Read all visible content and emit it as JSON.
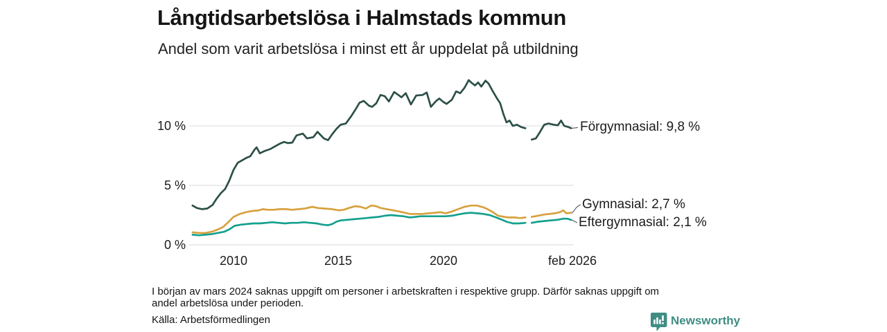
{
  "header": {
    "title": "Långtidsarbetslösa i Halmstads kommun",
    "subtitle": "Andel som varit arbetslösa i minst ett år uppdelat på utbildning"
  },
  "chart_data": {
    "type": "line",
    "title": "Långtidsarbetslösa i Halmstads kommun",
    "subtitle": "Andel som varit arbetslösa i minst ett år uppdelat på utbildning",
    "x_axis": {
      "range_years": [
        2008.05,
        2026.08
      ],
      "ticks": [
        {
          "label": "2010",
          "t": 2010
        },
        {
          "label": "2015",
          "t": 2015
        },
        {
          "label": "2020",
          "t": 2020
        },
        {
          "label": "feb 2026",
          "t": 2026.08
        }
      ]
    },
    "y_axis": {
      "unit": "%",
      "range": [
        0,
        14
      ],
      "ticks": [
        {
          "label": "0 %",
          "value": 0
        },
        {
          "label": "5 %",
          "value": 5
        },
        {
          "label": "10 %",
          "value": 10
        }
      ],
      "grid": true
    },
    "data_gap_note": "data missing around mars 2024 (visible break in all lines)",
    "series": [
      {
        "name": "Förgymnasial",
        "label": "Förgymnasial: 9,8 %",
        "end_value": 9.8,
        "color": "#2c4f48",
        "segments": [
          [
            [
              2008.05,
              3.3
            ],
            [
              2008.25,
              3.1
            ],
            [
              2008.5,
              3.0
            ],
            [
              2008.75,
              3.05
            ],
            [
              2009.0,
              3.35
            ],
            [
              2009.2,
              3.9
            ],
            [
              2009.4,
              4.35
            ],
            [
              2009.6,
              4.7
            ],
            [
              2009.8,
              5.4
            ],
            [
              2010.0,
              6.3
            ],
            [
              2010.2,
              6.9
            ],
            [
              2010.4,
              7.1
            ],
            [
              2010.6,
              7.3
            ],
            [
              2010.8,
              7.45
            ],
            [
              2011.0,
              8.0
            ],
            [
              2011.1,
              8.2
            ],
            [
              2011.25,
              7.7
            ],
            [
              2011.5,
              7.9
            ],
            [
              2011.75,
              8.05
            ],
            [
              2012.0,
              8.3
            ],
            [
              2012.2,
              8.5
            ],
            [
              2012.4,
              8.65
            ],
            [
              2012.6,
              8.55
            ],
            [
              2012.8,
              8.6
            ],
            [
              2013.0,
              9.2
            ],
            [
              2013.3,
              9.35
            ],
            [
              2013.5,
              8.95
            ],
            [
              2013.8,
              9.05
            ],
            [
              2014.0,
              9.5
            ],
            [
              2014.3,
              8.95
            ],
            [
              2014.5,
              8.8
            ],
            [
              2014.7,
              9.3
            ],
            [
              2014.9,
              9.75
            ],
            [
              2015.1,
              10.1
            ],
            [
              2015.35,
              10.2
            ],
            [
              2015.6,
              10.8
            ],
            [
              2015.85,
              11.5
            ],
            [
              2016.0,
              11.95
            ],
            [
              2016.2,
              12.1
            ],
            [
              2016.45,
              11.7
            ],
            [
              2016.6,
              11.6
            ],
            [
              2016.8,
              11.9
            ],
            [
              2017.0,
              12.6
            ],
            [
              2017.2,
              12.5
            ],
            [
              2017.4,
              12.05
            ],
            [
              2017.65,
              12.85
            ],
            [
              2017.85,
              12.6
            ],
            [
              2018.0,
              12.4
            ],
            [
              2018.2,
              12.75
            ],
            [
              2018.45,
              11.8
            ],
            [
              2018.7,
              12.55
            ],
            [
              2019.0,
              12.6
            ],
            [
              2019.2,
              12.8
            ],
            [
              2019.4,
              11.6
            ],
            [
              2019.65,
              12.1
            ],
            [
              2019.8,
              12.3
            ],
            [
              2020.0,
              12.0
            ],
            [
              2020.15,
              11.85
            ],
            [
              2020.4,
              12.2
            ],
            [
              2020.6,
              12.9
            ],
            [
              2020.8,
              12.75
            ],
            [
              2021.0,
              13.2
            ],
            [
              2021.2,
              13.85
            ],
            [
              2021.35,
              13.6
            ],
            [
              2021.5,
              13.4
            ],
            [
              2021.65,
              13.65
            ],
            [
              2021.8,
              13.3
            ],
            [
              2022.0,
              13.8
            ],
            [
              2022.15,
              13.55
            ],
            [
              2022.35,
              12.9
            ],
            [
              2022.55,
              12.3
            ],
            [
              2022.7,
              11.9
            ],
            [
              2022.85,
              11.0
            ],
            [
              2023.0,
              10.3
            ],
            [
              2023.15,
              10.45
            ],
            [
              2023.3,
              10.0
            ],
            [
              2023.5,
              10.1
            ],
            [
              2023.7,
              9.9
            ],
            [
              2023.9,
              9.8
            ]
          ],
          [
            [
              2024.2,
              8.85
            ],
            [
              2024.4,
              8.95
            ],
            [
              2024.6,
              9.5
            ],
            [
              2024.8,
              10.1
            ],
            [
              2025.0,
              10.2
            ],
            [
              2025.25,
              10.1
            ],
            [
              2025.45,
              10.05
            ],
            [
              2025.6,
              10.45
            ],
            [
              2025.75,
              10.0
            ],
            [
              2025.95,
              9.9
            ],
            [
              2026.08,
              9.8
            ]
          ]
        ]
      },
      {
        "name": "Gymnasial",
        "label": "Gymnasial: 2,7 %",
        "end_value": 2.7,
        "color": "#d7a13e",
        "segments": [
          [
            [
              2008.05,
              1.05
            ],
            [
              2008.35,
              1.0
            ],
            [
              2008.65,
              1.0
            ],
            [
              2008.95,
              1.1
            ],
            [
              2009.2,
              1.25
            ],
            [
              2009.5,
              1.5
            ],
            [
              2009.75,
              1.9
            ],
            [
              2010.0,
              2.35
            ],
            [
              2010.3,
              2.6
            ],
            [
              2010.6,
              2.75
            ],
            [
              2010.9,
              2.85
            ],
            [
              2011.2,
              2.9
            ],
            [
              2011.4,
              3.0
            ],
            [
              2011.65,
              2.95
            ],
            [
              2011.9,
              2.95
            ],
            [
              2012.2,
              3.0
            ],
            [
              2012.5,
              3.0
            ],
            [
              2012.8,
              2.95
            ],
            [
              2013.1,
              3.0
            ],
            [
              2013.4,
              3.05
            ],
            [
              2013.75,
              3.2
            ],
            [
              2014.0,
              3.1
            ],
            [
              2014.3,
              3.05
            ],
            [
              2014.7,
              3.0
            ],
            [
              2015.0,
              2.9
            ],
            [
              2015.25,
              2.95
            ],
            [
              2015.5,
              3.1
            ],
            [
              2015.8,
              3.25
            ],
            [
              2016.05,
              3.2
            ],
            [
              2016.3,
              3.05
            ],
            [
              2016.55,
              3.3
            ],
            [
              2016.8,
              3.25
            ],
            [
              2017.0,
              3.1
            ],
            [
              2017.3,
              3.0
            ],
            [
              2017.6,
              2.9
            ],
            [
              2017.9,
              2.8
            ],
            [
              2018.15,
              2.7
            ],
            [
              2018.4,
              2.6
            ],
            [
              2018.7,
              2.6
            ],
            [
              2019.0,
              2.6
            ],
            [
              2019.3,
              2.65
            ],
            [
              2019.6,
              2.7
            ],
            [
              2019.85,
              2.75
            ],
            [
              2020.1,
              2.65
            ],
            [
              2020.4,
              2.8
            ],
            [
              2020.7,
              3.0
            ],
            [
              2021.0,
              3.2
            ],
            [
              2021.3,
              3.3
            ],
            [
              2021.6,
              3.3
            ],
            [
              2021.9,
              3.15
            ],
            [
              2022.1,
              3.0
            ],
            [
              2022.3,
              2.8
            ],
            [
              2022.6,
              2.45
            ],
            [
              2022.9,
              2.35
            ],
            [
              2023.1,
              2.3
            ],
            [
              2023.4,
              2.3
            ],
            [
              2023.65,
              2.25
            ],
            [
              2023.9,
              2.3
            ]
          ],
          [
            [
              2024.2,
              2.35
            ],
            [
              2024.5,
              2.45
            ],
            [
              2024.8,
              2.55
            ],
            [
              2025.05,
              2.6
            ],
            [
              2025.3,
              2.65
            ],
            [
              2025.55,
              2.75
            ],
            [
              2025.7,
              2.9
            ],
            [
              2025.85,
              2.65
            ],
            [
              2026.08,
              2.7
            ]
          ]
        ]
      },
      {
        "name": "Eftergymnasial",
        "label": "Eftergymnasial: 2,1 %",
        "end_value": 2.1,
        "color": "#14a08d",
        "segments": [
          [
            [
              2008.05,
              0.85
            ],
            [
              2008.35,
              0.8
            ],
            [
              2008.65,
              0.85
            ],
            [
              2008.95,
              0.9
            ],
            [
              2009.25,
              1.0
            ],
            [
              2009.55,
              1.1
            ],
            [
              2009.8,
              1.3
            ],
            [
              2010.05,
              1.6
            ],
            [
              2010.35,
              1.7
            ],
            [
              2010.65,
              1.75
            ],
            [
              2010.95,
              1.8
            ],
            [
              2011.25,
              1.8
            ],
            [
              2011.55,
              1.85
            ],
            [
              2011.85,
              1.9
            ],
            [
              2012.15,
              1.85
            ],
            [
              2012.45,
              1.8
            ],
            [
              2012.75,
              1.85
            ],
            [
              2013.05,
              1.85
            ],
            [
              2013.35,
              1.9
            ],
            [
              2013.65,
              1.85
            ],
            [
              2013.95,
              1.8
            ],
            [
              2014.25,
              1.7
            ],
            [
              2014.5,
              1.65
            ],
            [
              2014.7,
              1.75
            ],
            [
              2014.9,
              1.95
            ],
            [
              2015.1,
              2.05
            ],
            [
              2015.4,
              2.1
            ],
            [
              2015.7,
              2.15
            ],
            [
              2016.0,
              2.2
            ],
            [
              2016.3,
              2.25
            ],
            [
              2016.6,
              2.3
            ],
            [
              2016.9,
              2.35
            ],
            [
              2017.2,
              2.45
            ],
            [
              2017.5,
              2.5
            ],
            [
              2017.8,
              2.45
            ],
            [
              2018.1,
              2.4
            ],
            [
              2018.4,
              2.3
            ],
            [
              2018.65,
              2.35
            ],
            [
              2018.9,
              2.4
            ],
            [
              2019.2,
              2.4
            ],
            [
              2019.5,
              2.4
            ],
            [
              2019.8,
              2.4
            ],
            [
              2020.1,
              2.4
            ],
            [
              2020.4,
              2.45
            ],
            [
              2020.7,
              2.55
            ],
            [
              2021.0,
              2.65
            ],
            [
              2021.3,
              2.7
            ],
            [
              2021.6,
              2.65
            ],
            [
              2021.9,
              2.6
            ],
            [
              2022.2,
              2.5
            ],
            [
              2022.5,
              2.3
            ],
            [
              2022.8,
              2.1
            ],
            [
              2023.0,
              1.95
            ],
            [
              2023.3,
              1.8
            ],
            [
              2023.6,
              1.8
            ],
            [
              2023.9,
              1.85
            ]
          ],
          [
            [
              2024.2,
              1.85
            ],
            [
              2024.5,
              1.95
            ],
            [
              2024.8,
              2.0
            ],
            [
              2025.1,
              2.05
            ],
            [
              2025.4,
              2.1
            ],
            [
              2025.7,
              2.2
            ],
            [
              2025.9,
              2.2
            ],
            [
              2026.08,
              2.1
            ]
          ]
        ]
      }
    ],
    "colors": {
      "grid": "#e1e1e8",
      "accent_brand": "#3f8d83"
    }
  },
  "footer": {
    "note_lines": [
      "I början av mars 2024 saknas uppgift om personer i arbetskraften i respektive grupp. Därför saknas uppgift om",
      "andel arbetslösa under perioden."
    ],
    "source": "Källa: Arbetsförmedlingen",
    "brand": "Newsworthy"
  }
}
